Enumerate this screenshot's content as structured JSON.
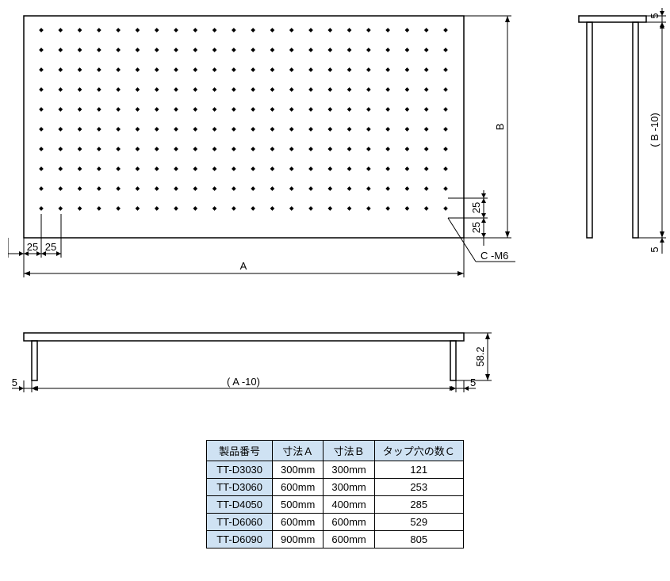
{
  "top_view": {
    "width_label": "A",
    "height_label": "B",
    "margin_h1": "25",
    "margin_h2": "25",
    "margin_v1": "25",
    "margin_v2": "25",
    "tap_label": "C -M6",
    "outline_color": "#000000",
    "hole_color": "#000000",
    "hole_rows": 10,
    "hole_cols": 22,
    "hole_size": 4
  },
  "front_view": {
    "width_label": "( A -10)",
    "height_label": "58.2",
    "margin_left": "5",
    "margin_right": "5"
  },
  "side_view": {
    "height_label": "( B -10)",
    "margin_top": "5",
    "margin_bottom": "5"
  },
  "table": {
    "headers": [
      "製品番号",
      "寸法Ａ",
      "寸法Ｂ",
      "タップ穴の数Ｃ"
    ],
    "rows": [
      [
        "TT-D3030",
        "300mm",
        "300mm",
        "121"
      ],
      [
        "TT-D3060",
        "600mm",
        "300mm",
        "253"
      ],
      [
        "TT-D4050",
        "500mm",
        "400mm",
        "285"
      ],
      [
        "TT-D6060",
        "600mm",
        "600mm",
        "529"
      ],
      [
        "TT-D6090",
        "900mm",
        "600mm",
        "805"
      ]
    ],
    "header_bg": "#cfe2f3",
    "label_bg": "#cfe2f3",
    "border_color": "#000000"
  },
  "colors": {
    "line": "#000000",
    "background": "#ffffff"
  }
}
